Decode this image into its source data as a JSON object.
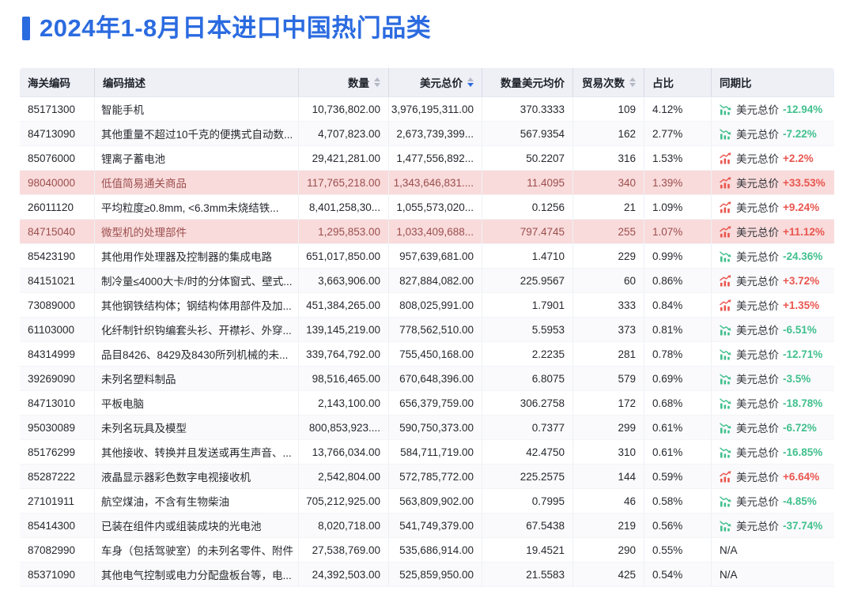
{
  "title": "2024年1-8月日本进口中国热门品类",
  "accent_color": "#2B6BE0",
  "colors": {
    "up": "#E9564F",
    "down": "#41C08D",
    "highlight_bg": "#F9DBDB",
    "highlight_text": "#9D4D4D"
  },
  "table": {
    "columns": [
      {
        "label": "海关编码",
        "align": "left",
        "sortable": false,
        "sort": null
      },
      {
        "label": "编码描述",
        "align": "left",
        "sortable": false,
        "sort": null
      },
      {
        "label": "数量",
        "align": "right",
        "sortable": true,
        "sort": "none"
      },
      {
        "label": "美元总价",
        "align": "right",
        "sortable": true,
        "sort": "desc"
      },
      {
        "label": "数量美元均价",
        "align": "right",
        "sortable": false,
        "sort": null
      },
      {
        "label": "贸易次数",
        "align": "right",
        "sortable": true,
        "sort": "none"
      },
      {
        "label": "占比",
        "align": "left",
        "sortable": false,
        "sort": null
      },
      {
        "label": "同期比",
        "align": "left",
        "sortable": false,
        "sort": null
      }
    ],
    "yoy_label": "美元总价",
    "na_text": "N/A",
    "rows": [
      {
        "code": "85171300",
        "desc": "智能手机",
        "qty": "10,736,802.00",
        "usd": "3,976,195,311.00",
        "avg": "370.3333",
        "trades": "109",
        "share": "4.12%",
        "yoy_value": "-12.94%",
        "yoy_trend": "down",
        "highlight": false
      },
      {
        "code": "84713090",
        "desc": "其他重量不超过10千克的便携式自动数...",
        "qty": "4,707,823.00",
        "usd": "2,673,739,399...",
        "avg": "567.9354",
        "trades": "162",
        "share": "2.77%",
        "yoy_value": "-7.22%",
        "yoy_trend": "down",
        "highlight": false
      },
      {
        "code": "85076000",
        "desc": "锂离子蓄电池",
        "qty": "29,421,281.00",
        "usd": "1,477,556,892...",
        "avg": "50.2207",
        "trades": "316",
        "share": "1.53%",
        "yoy_value": "+2.2%",
        "yoy_trend": "up",
        "highlight": false
      },
      {
        "code": "98040000",
        "desc": "低值简易通关商品",
        "qty": "117,765,218.00",
        "usd": "1,343,646,831....",
        "avg": "11.4095",
        "trades": "340",
        "share": "1.39%",
        "yoy_value": "+33.53%",
        "yoy_trend": "up",
        "highlight": true
      },
      {
        "code": "26011120",
        "desc": "平均粒度≥0.8mm, <6.3mm未烧结铁...",
        "qty": "8,401,258,30...",
        "usd": "1,055,573,020...",
        "avg": "0.1256",
        "trades": "21",
        "share": "1.09%",
        "yoy_value": "+9.24%",
        "yoy_trend": "up",
        "highlight": false
      },
      {
        "code": "84715040",
        "desc": "微型机的处理部件",
        "qty": "1,295,853.00",
        "usd": "1,033,409,688...",
        "avg": "797.4745",
        "trades": "255",
        "share": "1.07%",
        "yoy_value": "+11.12%",
        "yoy_trend": "up",
        "highlight": true
      },
      {
        "code": "85423190",
        "desc": "其他用作处理器及控制器的集成电路",
        "qty": "651,017,850.00",
        "usd": "957,639,681.00",
        "avg": "1.4710",
        "trades": "229",
        "share": "0.99%",
        "yoy_value": "-24.36%",
        "yoy_trend": "down",
        "highlight": false
      },
      {
        "code": "84151021",
        "desc": "制冷量≤4000大卡/时的分体窗式、壁式...",
        "qty": "3,663,906.00",
        "usd": "827,884,082.00",
        "avg": "225.9567",
        "trades": "60",
        "share": "0.86%",
        "yoy_value": "+3.72%",
        "yoy_trend": "up",
        "highlight": false
      },
      {
        "code": "73089000",
        "desc": "其他钢铁结构体；钢结构体用部件及加...",
        "qty": "451,384,265.00",
        "usd": "808,025,991.00",
        "avg": "1.7901",
        "trades": "333",
        "share": "0.84%",
        "yoy_value": "+1.35%",
        "yoy_trend": "up",
        "highlight": false
      },
      {
        "code": "61103000",
        "desc": "化纤制针织钩编套头衫、开襟衫、外穿...",
        "qty": "139,145,219.00",
        "usd": "778,562,510.00",
        "avg": "5.5953",
        "trades": "373",
        "share": "0.81%",
        "yoy_value": "-6.51%",
        "yoy_trend": "down",
        "highlight": false
      },
      {
        "code": "84314999",
        "desc": "品目8426、8429及8430所列机械的未...",
        "qty": "339,764,792.00",
        "usd": "755,450,168.00",
        "avg": "2.2235",
        "trades": "281",
        "share": "0.78%",
        "yoy_value": "-12.71%",
        "yoy_trend": "down",
        "highlight": false
      },
      {
        "code": "39269090",
        "desc": "未列名塑料制品",
        "qty": "98,516,465.00",
        "usd": "670,648,396.00",
        "avg": "6.8075",
        "trades": "579",
        "share": "0.69%",
        "yoy_value": "-3.5%",
        "yoy_trend": "down",
        "highlight": false
      },
      {
        "code": "84713010",
        "desc": "平板电脑",
        "qty": "2,143,100.00",
        "usd": "656,379,759.00",
        "avg": "306.2758",
        "trades": "172",
        "share": "0.68%",
        "yoy_value": "-18.78%",
        "yoy_trend": "down",
        "highlight": false
      },
      {
        "code": "95030089",
        "desc": "未列名玩具及模型",
        "qty": "800,853,923....",
        "usd": "590,750,373.00",
        "avg": "0.7377",
        "trades": "299",
        "share": "0.61%",
        "yoy_value": "-6.72%",
        "yoy_trend": "down",
        "highlight": false
      },
      {
        "code": "85176299",
        "desc": "其他接收、转换并且发送或再生声音、...",
        "qty": "13,766,034.00",
        "usd": "584,711,719.00",
        "avg": "42.4750",
        "trades": "310",
        "share": "0.61%",
        "yoy_value": "-16.85%",
        "yoy_trend": "down",
        "highlight": false
      },
      {
        "code": "85287222",
        "desc": "液晶显示器彩色数字电视接收机",
        "qty": "2,542,804.00",
        "usd": "572,785,772.00",
        "avg": "225.2575",
        "trades": "144",
        "share": "0.59%",
        "yoy_value": "+6.64%",
        "yoy_trend": "up",
        "highlight": false
      },
      {
        "code": "27101911",
        "desc": "航空煤油，不含有生物柴油",
        "qty": "705,212,925.00",
        "usd": "563,809,902.00",
        "avg": "0.7995",
        "trades": "46",
        "share": "0.58%",
        "yoy_value": "-4.85%",
        "yoy_trend": "down",
        "highlight": false
      },
      {
        "code": "85414300",
        "desc": "已装在组件内或组装成块的光电池",
        "qty": "8,020,718.00",
        "usd": "541,749,379.00",
        "avg": "67.5438",
        "trades": "219",
        "share": "0.56%",
        "yoy_value": "-37.74%",
        "yoy_trend": "down",
        "highlight": false
      },
      {
        "code": "87082990",
        "desc": "车身（包括驾驶室）的未列名零件、附件",
        "qty": "27,538,769.00",
        "usd": "535,686,914.00",
        "avg": "19.4521",
        "trades": "290",
        "share": "0.55%",
        "yoy_value": null,
        "yoy_trend": null,
        "highlight": false
      },
      {
        "code": "85371090",
        "desc": "其他电气控制或电力分配盘板台等，电...",
        "qty": "24,392,503.00",
        "usd": "525,859,950.00",
        "avg": "21.5583",
        "trades": "425",
        "share": "0.54%",
        "yoy_value": null,
        "yoy_trend": null,
        "highlight": false
      }
    ]
  }
}
